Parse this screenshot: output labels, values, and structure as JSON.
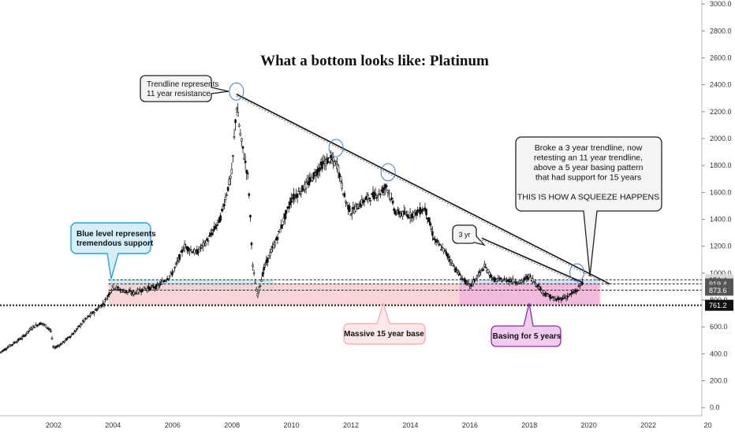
{
  "chart_data": {
    "type": "candlestick",
    "title": "What a bottom looks like: Platinum",
    "xlabel": "",
    "ylabel": "",
    "x_ticks": [
      "2002",
      "2004",
      "2006",
      "2008",
      "2010",
      "2012",
      "2014",
      "2016",
      "2018",
      "2020",
      "2022",
      "20"
    ],
    "y_ticks": [
      "0.0",
      "200.0",
      "400.0",
      "600.0",
      "800.0",
      "1000.0",
      "1200.0",
      "1400.0",
      "1600.0",
      "1800.0",
      "2000.0",
      "2200.0",
      "2400.0",
      "2600.0",
      "2800.0",
      "3000.0"
    ],
    "ylim": [
      -60,
      3030
    ],
    "xlim": [
      2000.2,
      2023.8
    ],
    "price_series": [
      [
        2000.2,
        410
      ],
      [
        2000.6,
        470
      ],
      [
        2001.0,
        530
      ],
      [
        2001.3,
        600
      ],
      [
        2001.6,
        630
      ],
      [
        2001.9,
        580
      ],
      [
        2002.0,
        440
      ],
      [
        2002.3,
        480
      ],
      [
        2002.7,
        560
      ],
      [
        2003.0,
        640
      ],
      [
        2003.4,
        720
      ],
      [
        2003.7,
        780
      ],
      [
        2004.0,
        900
      ],
      [
        2004.3,
        870
      ],
      [
        2004.7,
        850
      ],
      [
        2005.0,
        880
      ],
      [
        2005.5,
        900
      ],
      [
        2006.0,
        1000
      ],
      [
        2006.4,
        1200
      ],
      [
        2006.8,
        1150
      ],
      [
        2007.2,
        1250
      ],
      [
        2007.6,
        1400
      ],
      [
        2008.0,
        1750
      ],
      [
        2008.15,
        2250
      ],
      [
        2008.3,
        2000
      ],
      [
        2008.55,
        1700
      ],
      [
        2008.7,
        1050
      ],
      [
        2008.85,
        830
      ],
      [
        2009.1,
        1050
      ],
      [
        2009.5,
        1250
      ],
      [
        2010.0,
        1550
      ],
      [
        2010.5,
        1650
      ],
      [
        2011.0,
        1800
      ],
      [
        2011.3,
        1850
      ],
      [
        2011.55,
        1800
      ],
      [
        2011.8,
        1550
      ],
      [
        2012.0,
        1450
      ],
      [
        2012.5,
        1550
      ],
      [
        2013.0,
        1600
      ],
      [
        2013.2,
        1650
      ],
      [
        2013.5,
        1450
      ],
      [
        2014.0,
        1430
      ],
      [
        2014.5,
        1480
      ],
      [
        2014.8,
        1250
      ],
      [
        2015.2,
        1150
      ],
      [
        2015.6,
        1000
      ],
      [
        2016.0,
        900
      ],
      [
        2016.5,
        1050
      ],
      [
        2016.8,
        950
      ],
      [
        2017.3,
        950
      ],
      [
        2017.7,
        930
      ],
      [
        2018.0,
        980
      ],
      [
        2018.5,
        850
      ],
      [
        2018.9,
        800
      ],
      [
        2019.3,
        830
      ],
      [
        2019.6,
        870
      ],
      [
        2019.8,
        940
      ]
    ],
    "levels": [
      {
        "value": 950.4,
        "label": "950.4"
      },
      {
        "value": 919.4,
        "label": "919.4"
      },
      {
        "value": 873.6,
        "label": "873.6"
      },
      {
        "value": 761.2,
        "label": "761.2"
      }
    ],
    "trendlines": [
      {
        "name": "",
        "from": [
          2008.15,
          2330
        ],
        "to": [
          2020.7,
          920
        ]
      },
      {
        "name": "3 yr",
        "from": [
          2016.4,
          1260
        ],
        "to": [
          2019.8,
          930
        ]
      }
    ],
    "zones": [
      {
        "name": "blue-support",
        "x": [
          2003.85,
          2009.4
        ],
        "y": [
          873.6,
          950.4
        ],
        "color": "#bfe8ee"
      },
      {
        "name": "red-base",
        "x": [
          2003.85,
          2020.4
        ],
        "y": [
          761.2,
          919.4
        ],
        "color": "#f7cfd0"
      },
      {
        "name": "pink-basing",
        "x": [
          2015.65,
          2020.35
        ],
        "y": [
          761.2,
          919.4
        ],
        "color": "#f0b4dc"
      },
      {
        "name": "blue-basing",
        "x": [
          2015.65,
          2020.35
        ],
        "y": [
          919.4,
          950.4
        ],
        "color": "#c9d8f2"
      }
    ],
    "circles": [
      [
        2008.15,
        2350
      ],
      [
        2011.5,
        1930
      ],
      [
        2013.25,
        1750
      ],
      [
        2019.6,
        1005
      ]
    ],
    "annotations": [
      {
        "id": "trendline",
        "lines": [
          "Trendline represents",
          "11 year resistance"
        ]
      },
      {
        "id": "blue-level",
        "lines": [
          "Blue level represents",
          "tremendous support"
        ]
      },
      {
        "id": "massive",
        "lines": [
          "Massive 15 year base"
        ]
      },
      {
        "id": "basing",
        "lines": [
          "Basing for 5 years"
        ]
      },
      {
        "id": "3yr",
        "lines": [
          "3 yr"
        ]
      },
      {
        "id": "squeeze",
        "lines": [
          "Broke a 3 year trendline, now",
          "retesting an 11 year trendline,",
          "above a 5 year basing pattern",
          "that had support for 15 years",
          "",
          "THIS IS HOW A SQUEEZE HAPPENS"
        ]
      }
    ],
    "grid": false,
    "legend": "none"
  }
}
